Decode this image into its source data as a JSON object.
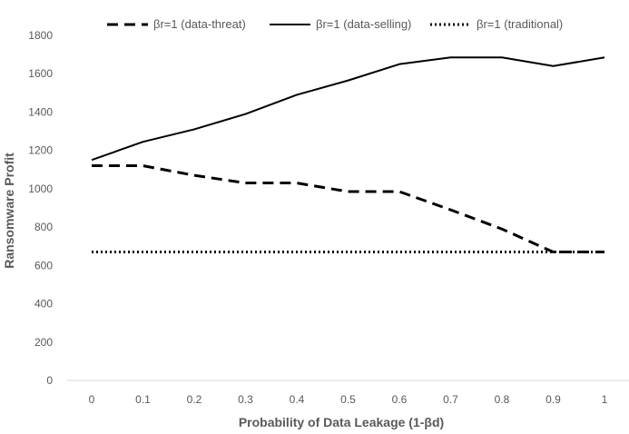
{
  "chart_data": {
    "type": "line",
    "title": "",
    "xlabel": "Probability of Data Leakage (1-βd)",
    "ylabel": "Ransomware Profit",
    "x": [
      0,
      0.1,
      0.2,
      0.3,
      0.4,
      0.5,
      0.6,
      0.7,
      0.8,
      0.9,
      1
    ],
    "x_tick_labels": [
      "0",
      "0.1",
      "0.2",
      "0.3",
      "0.4",
      "0.5",
      "0.6",
      "0.7",
      "0.8",
      "0.9",
      "1"
    ],
    "ylim": [
      0,
      1800
    ],
    "y_ticks": [
      0,
      200,
      400,
      600,
      800,
      1000,
      1200,
      1400,
      1600,
      1800
    ],
    "y_tick_labels": [
      "0",
      "200",
      "400",
      "600",
      "800",
      "1000",
      "1200",
      "1400",
      "1600",
      "1800"
    ],
    "grid": false,
    "legend_position": "top",
    "series": [
      {
        "name": "βr=1 (data-threat)",
        "style": "dashed",
        "color": "#000000",
        "values": [
          1120,
          1120,
          1070,
          1030,
          1030,
          985,
          985,
          890,
          790,
          670,
          670
        ]
      },
      {
        "name": "βr=1 (data-selling)",
        "style": "solid",
        "color": "#000000",
        "values": [
          1150,
          1245,
          1310,
          1390,
          1490,
          1565,
          1650,
          1685,
          1685,
          1640,
          1685
        ]
      },
      {
        "name": "βr=1 (traditional)",
        "style": "dotted",
        "color": "#000000",
        "values": [
          670,
          670,
          670,
          670,
          670,
          670,
          670,
          670,
          670,
          670,
          670
        ]
      }
    ]
  }
}
